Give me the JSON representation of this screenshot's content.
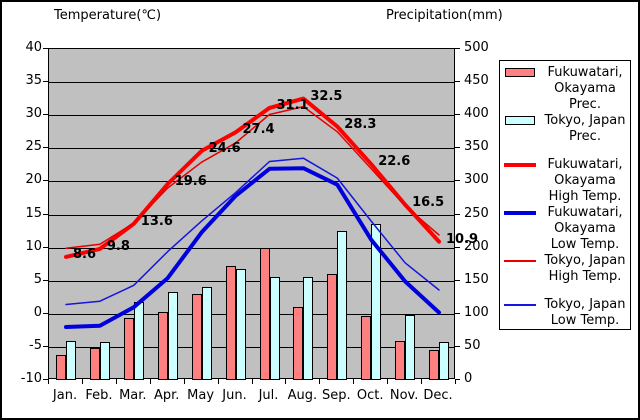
{
  "left_axis": {
    "title": "Temperature(℃)",
    "ticks": [
      "40",
      "35",
      "30",
      "25",
      "20",
      "15",
      "10",
      "5",
      "0",
      "-5",
      "-10"
    ]
  },
  "right_axis": {
    "title": "Precipitation(mm)",
    "ticks": [
      "500",
      "450",
      "400",
      "350",
      "300",
      "250",
      "200",
      "150",
      "100",
      "50",
      "0"
    ]
  },
  "months": [
    "Jan.",
    "Feb.",
    "Mar.",
    "Apr.",
    "May",
    "Jun.",
    "Jul.",
    "Aug.",
    "Sep.",
    "Oct.",
    "Nov.",
    "Dec."
  ],
  "chart_data": [
    {
      "type": "bar",
      "axis": "right",
      "ylabel": "Precipitation(mm)",
      "ylim": [
        0,
        500
      ],
      "categories": [
        "Jan.",
        "Feb.",
        "Mar.",
        "Apr.",
        "May",
        "Jun.",
        "Jul.",
        "Aug.",
        "Sep.",
        "Oct.",
        "Nov.",
        "Dec."
      ],
      "series": [
        {
          "name": "Fukuwatari, Okayama Prec.",
          "color": "#ff8080",
          "values": [
            38,
            49,
            93,
            103,
            130,
            172,
            200,
            110,
            160,
            97,
            59,
            45
          ]
        },
        {
          "name": "Tokyo, Japan Prec.",
          "color": "#ccffff",
          "values": [
            59,
            57,
            118,
            133,
            140,
            167,
            156,
            155,
            225,
            235,
            99,
            57
          ]
        }
      ]
    },
    {
      "type": "line",
      "axis": "left",
      "ylabel": "Temperature(℃)",
      "ylim": [
        -10,
        40
      ],
      "categories": [
        "Jan.",
        "Feb.",
        "Mar.",
        "Apr.",
        "May",
        "Jun.",
        "Jul.",
        "Aug.",
        "Sep.",
        "Oct.",
        "Nov.",
        "Dec."
      ],
      "series": [
        {
          "name": "Fukuwatari, Okayama High Temp.",
          "color": "#ff0000",
          "stroke_width": 4,
          "values": [
            8.6,
            9.8,
            13.6,
            19.6,
            24.6,
            27.4,
            31.1,
            32.5,
            28.3,
            22.6,
            16.5,
            10.9
          ],
          "point_labels": [
            "8.6",
            "9.8",
            "13.6",
            "19.6",
            "24.6",
            "27.4",
            "31.1",
            "32.5",
            "28.3",
            "22.6",
            "16.5",
            "10.9"
          ]
        },
        {
          "name": "Fukuwatari, Okayama Low Temp.",
          "color": "#0000dd",
          "stroke_width": 4,
          "values": [
            -2.0,
            -1.8,
            1.0,
            5.4,
            12.3,
            17.8,
            21.9,
            22.0,
            19.5,
            11.2,
            4.9,
            0.2
          ]
        },
        {
          "name": "Tokyo, Japan High Temp.",
          "color": "#e80000",
          "stroke_width": 1.5,
          "values": [
            9.9,
            10.5,
            13.7,
            19.0,
            22.9,
            25.8,
            30.1,
            31.3,
            27.5,
            21.9,
            16.3,
            11.9
          ]
        },
        {
          "name": "Tokyo, Japan Low Temp.",
          "color": "#1515dd",
          "stroke_width": 1.5,
          "values": [
            1.4,
            1.9,
            4.3,
            9.4,
            14.0,
            18.3,
            23.0,
            23.5,
            20.5,
            14.0,
            7.7,
            3.6
          ]
        }
      ]
    }
  ],
  "legend": {
    "items": [
      {
        "swatch": "bar",
        "color": "#ff8080",
        "lines": [
          "Fukuwatari,",
          "Okayama",
          "Prec."
        ]
      },
      {
        "swatch": "bar",
        "color": "#ccffff",
        "lines": [
          "Tokyo, Japan",
          "Prec."
        ]
      },
      {
        "swatch": "line-thick",
        "color": "#ff0000",
        "lines": [
          "Fukuwatari,",
          "Okayama",
          "High Temp."
        ],
        "gap_before": true
      },
      {
        "swatch": "line-thick",
        "color": "#0000dd",
        "lines": [
          "Fukuwatari,",
          "Okayama",
          "Low Temp."
        ]
      },
      {
        "swatch": "line-thin",
        "color": "#e80000",
        "lines": [
          "Tokyo, Japan",
          "High Temp."
        ]
      },
      {
        "swatch": "line-thin",
        "color": "#1515dd",
        "lines": [
          "Tokyo, Japan",
          "Low Temp."
        ],
        "gap_before": true
      }
    ]
  },
  "colors": {
    "plot_bg": "#c0c0c0",
    "grid": "#000000",
    "frame": "#000000"
  }
}
